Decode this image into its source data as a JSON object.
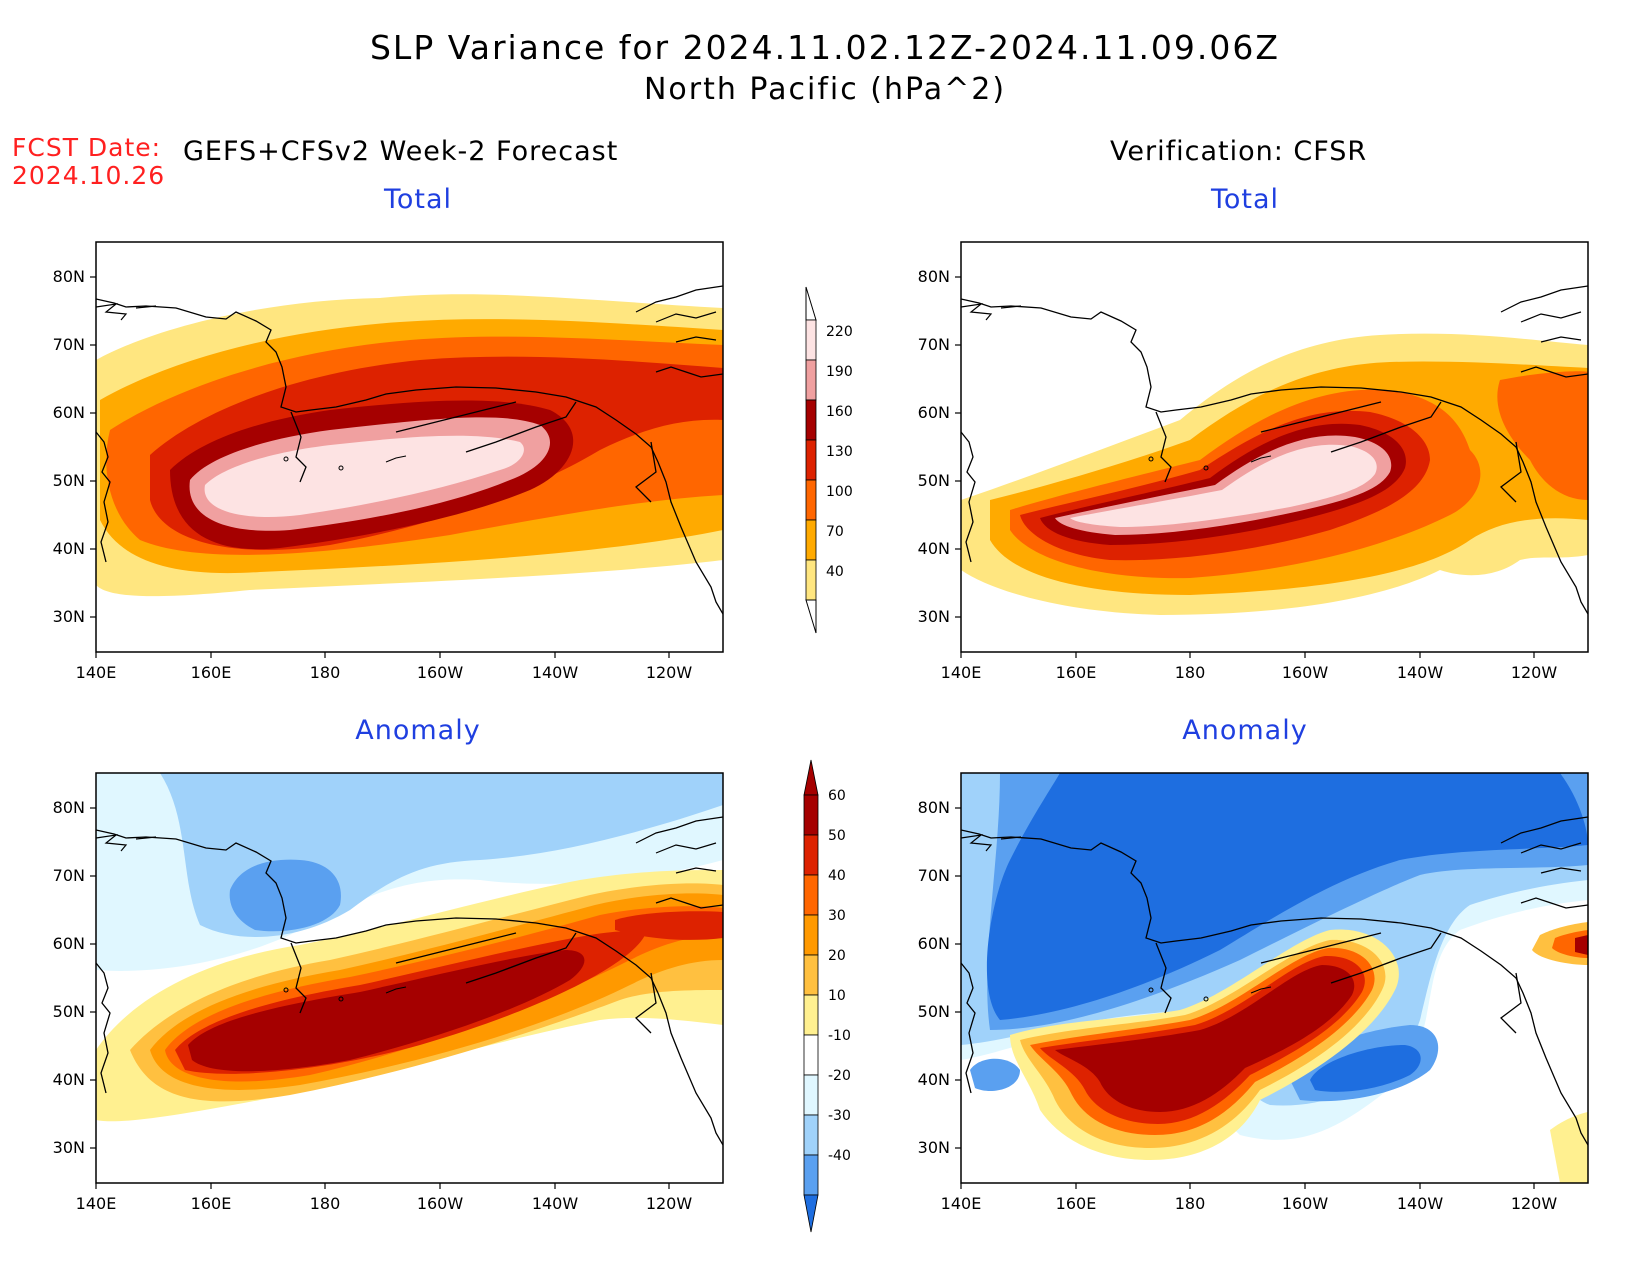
{
  "title": "SLP Variance for 2024.11.02.12Z-2024.11.09.06Z",
  "subtitle": "North Pacific (hPa^2)",
  "fcst_label": "FCST Date:",
  "fcst_date": "2024.10.26",
  "left_header": "GEFS+CFSv2 Week-2 Forecast",
  "right_header": "Verification: CFSR",
  "panels": {
    "tl": "Total",
    "tr": "Total",
    "bl": "Anomaly",
    "br": "Anomaly"
  },
  "lat_labels": [
    "80N",
    "70N",
    "60N",
    "50N",
    "40N",
    "30N"
  ],
  "lon_labels": [
    "140E",
    "160E",
    "180",
    "160W",
    "140W",
    "120W"
  ],
  "colorbar_total": {
    "labels": [
      "220",
      "190",
      "160",
      "130",
      "100",
      "70",
      "40"
    ],
    "colors": [
      "#fde3e3",
      "#f0a0a0",
      "#a50000",
      "#dd2200",
      "#ff6600",
      "#ffaa00",
      "#ffe680",
      "#ffffff"
    ]
  },
  "colorbar_anom": {
    "labels": [
      "60",
      "50",
      "40",
      "30",
      "20",
      "10",
      "-10",
      "-20",
      "-30",
      "-40"
    ],
    "colors": [
      "#a50000",
      "#dd2200",
      "#ff6600",
      "#ff9900",
      "#ffc040",
      "#fff090",
      "#ffffff",
      "#e0f7ff",
      "#a0d2fa",
      "#5aa0f0",
      "#1e6ee0"
    ]
  }
}
